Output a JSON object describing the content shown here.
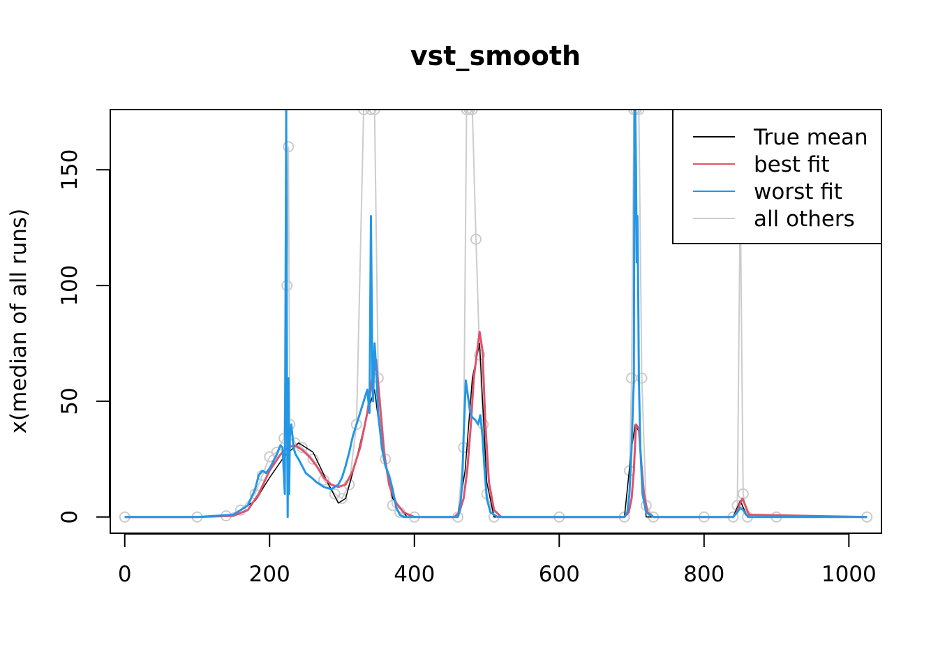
{
  "chart_data": {
    "type": "line",
    "title": "vst_smooth",
    "xlabel": "",
    "ylabel": "x(median of all runs)",
    "xlim": [
      -20,
      1045
    ],
    "ylim": [
      -7,
      176
    ],
    "x_ticks": [
      0,
      200,
      400,
      600,
      800,
      1000
    ],
    "y_ticks": [
      0,
      50,
      100,
      150
    ],
    "legend_position": "top-right",
    "series": [
      {
        "name": "all others",
        "color": "#cccccc",
        "style": "thin lines with open circle markers, many runs",
        "x": [
          0,
          100,
          140,
          160,
          180,
          190,
          200,
          210,
          220,
          224,
          226,
          228,
          235,
          245,
          260,
          275,
          290,
          300,
          310,
          320,
          330,
          340,
          345,
          350,
          360,
          370,
          380,
          400,
          460,
          468,
          472,
          476,
          480,
          485,
          490,
          495,
          500,
          510,
          600,
          690,
          697,
          700,
          703,
          706,
          710,
          714,
          720,
          730,
          800,
          840,
          846,
          850,
          854,
          860,
          900,
          1025
        ],
        "values": [
          0,
          0,
          0.5,
          3,
          10,
          18,
          26,
          28,
          34,
          100,
          160,
          40,
          32,
          30,
          25,
          16,
          10,
          8,
          14,
          40,
          176,
          176,
          176,
          60,
          25,
          5,
          2,
          0,
          0,
          30,
          176,
          176,
          176,
          120,
          70,
          40,
          10,
          0,
          0,
          0,
          20,
          60,
          176,
          176,
          176,
          60,
          5,
          0,
          0,
          0,
          5,
          140,
          10,
          0,
          0,
          0
        ]
      },
      {
        "name": "True mean",
        "color": "#000000",
        "x": [
          0,
          100,
          150,
          180,
          200,
          220,
          240,
          260,
          280,
          295,
          305,
          320,
          335,
          345,
          355,
          370,
          390,
          460,
          470,
          480,
          490,
          500,
          510,
          690,
          700,
          705,
          710,
          720,
          840,
          850,
          860,
          1025
        ],
        "values": [
          0,
          0,
          1,
          7,
          17,
          26,
          32,
          28,
          15,
          6,
          8,
          25,
          45,
          55,
          30,
          8,
          0,
          0,
          20,
          60,
          75,
          15,
          0,
          0,
          30,
          40,
          37,
          0,
          0,
          7,
          0,
          0
        ]
      },
      {
        "name": "best fit",
        "color": "#df536b",
        "x": [
          0,
          100,
          150,
          170,
          185,
          200,
          215,
          225,
          235,
          245,
          255,
          265,
          275,
          285,
          295,
          305,
          315,
          325,
          335,
          342,
          347,
          352,
          358,
          365,
          375,
          385,
          400,
          455,
          462,
          468,
          473,
          478,
          482,
          486,
          490,
          494,
          498,
          503,
          510,
          520,
          690,
          696,
          700,
          703,
          706,
          710,
          713,
          717,
          722,
          730,
          840,
          845,
          850,
          853,
          857,
          862,
          1025
        ],
        "values": [
          0,
          0,
          0.5,
          3,
          10,
          20,
          27,
          30,
          31,
          29,
          26,
          22,
          17,
          14,
          13,
          14,
          20,
          30,
          45,
          60,
          68,
          50,
          28,
          14,
          6,
          2,
          0,
          0,
          2,
          8,
          20,
          40,
          60,
          70,
          80,
          72,
          40,
          15,
          3,
          0,
          0,
          2,
          8,
          20,
          40,
          38,
          25,
          10,
          2,
          0,
          0,
          2,
          6,
          8,
          5,
          1,
          0
        ]
      },
      {
        "name": "worst fit",
        "color": "#2297e6",
        "x": [
          0,
          100,
          150,
          170,
          180,
          185,
          190,
          195,
          200,
          205,
          210,
          215,
          218,
          221,
          223,
          224,
          225,
          226,
          227,
          228,
          230,
          233,
          236,
          240,
          245,
          250,
          258,
          265,
          275,
          285,
          295,
          300,
          305,
          310,
          315,
          320,
          325,
          330,
          335,
          338,
          340,
          342,
          343,
          345,
          347,
          350,
          355,
          360,
          365,
          370,
          375,
          380,
          385,
          395,
          460,
          463,
          466,
          468,
          471,
          474,
          477,
          480,
          484,
          488,
          491,
          494,
          497,
          500,
          505,
          515,
          690,
          694,
          697,
          700,
          702,
          703,
          704,
          705,
          706,
          707,
          708,
          709,
          710,
          712,
          715,
          720,
          730,
          840,
          846,
          850,
          854,
          858,
          862,
          1025
        ],
        "values": [
          0,
          0,
          1,
          5,
          12,
          18,
          20,
          19,
          21,
          24,
          27,
          31,
          30,
          10,
          176,
          50,
          0,
          60,
          10,
          35,
          40,
          30,
          27,
          25,
          22,
          19,
          17,
          15,
          13,
          12,
          14,
          17,
          22,
          28,
          35,
          40,
          45,
          50,
          55,
          45,
          130,
          60,
          50,
          75,
          65,
          45,
          30,
          22,
          18,
          12,
          4,
          1,
          0,
          0,
          0,
          3,
          15,
          35,
          59,
          52,
          45,
          43,
          42,
          40,
          44,
          35,
          20,
          8,
          2,
          0,
          0,
          2,
          10,
          30,
          50,
          59,
          176,
          176,
          150,
          110,
          130,
          100,
          60,
          30,
          10,
          2,
          0,
          0,
          2,
          4,
          3,
          1,
          0,
          0
        ]
      }
    ],
    "legend_entries": [
      "True mean",
      "best fit",
      "worst fit",
      "all others"
    ]
  }
}
